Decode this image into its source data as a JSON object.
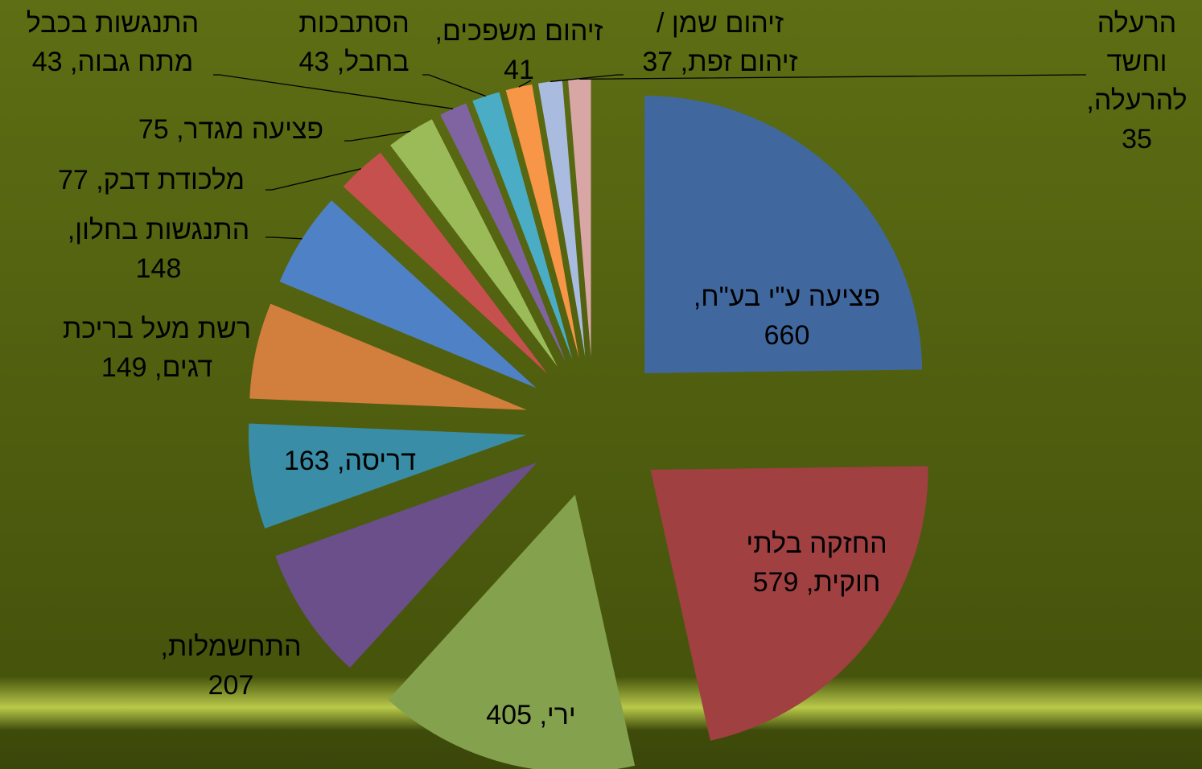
{
  "chart_data": {
    "type": "pie",
    "values": [
      660,
      579,
      405,
      207,
      163,
      149,
      148,
      77,
      75,
      43,
      43,
      41,
      37,
      35
    ],
    "value_labels": [
      [
        "פציעה ע\"י בע\"ח,",
        "660"
      ],
      [
        "החזקה בלתי",
        "חוקית, 579"
      ],
      [
        "ירי, 405"
      ],
      [
        "התחשמלות,",
        "207"
      ],
      [
        "דריסה, 163"
      ],
      [
        "רשת מעל בריכת",
        "דגים, 149"
      ],
      [
        "התנגשות בחלון,",
        "148"
      ],
      [
        "מלכודת דבק, 77"
      ],
      [
        "פציעה מגדר, 75"
      ],
      [
        "התנגשות בכבל",
        "מתח גבוה, 43"
      ],
      [
        "הסתבכות",
        "בחבל, 43"
      ],
      [
        "זיהום משפכים,",
        "41"
      ],
      [
        "זיהום שמן /",
        "זיהום זפת, 37"
      ],
      [
        "הרעלה",
        "וחשד",
        "להרעלה,",
        "35"
      ]
    ],
    "colors": [
      "#41689e",
      "#a04040",
      "#84a14d",
      "#6a4f8a",
      "#3a8da6",
      "#d27e3c",
      "#4f81c6",
      "#c6504d",
      "#9bbb59",
      "#8064a2",
      "#4bacc6",
      "#f79646",
      "#a9bce0",
      "#d9a6a6"
    ]
  }
}
